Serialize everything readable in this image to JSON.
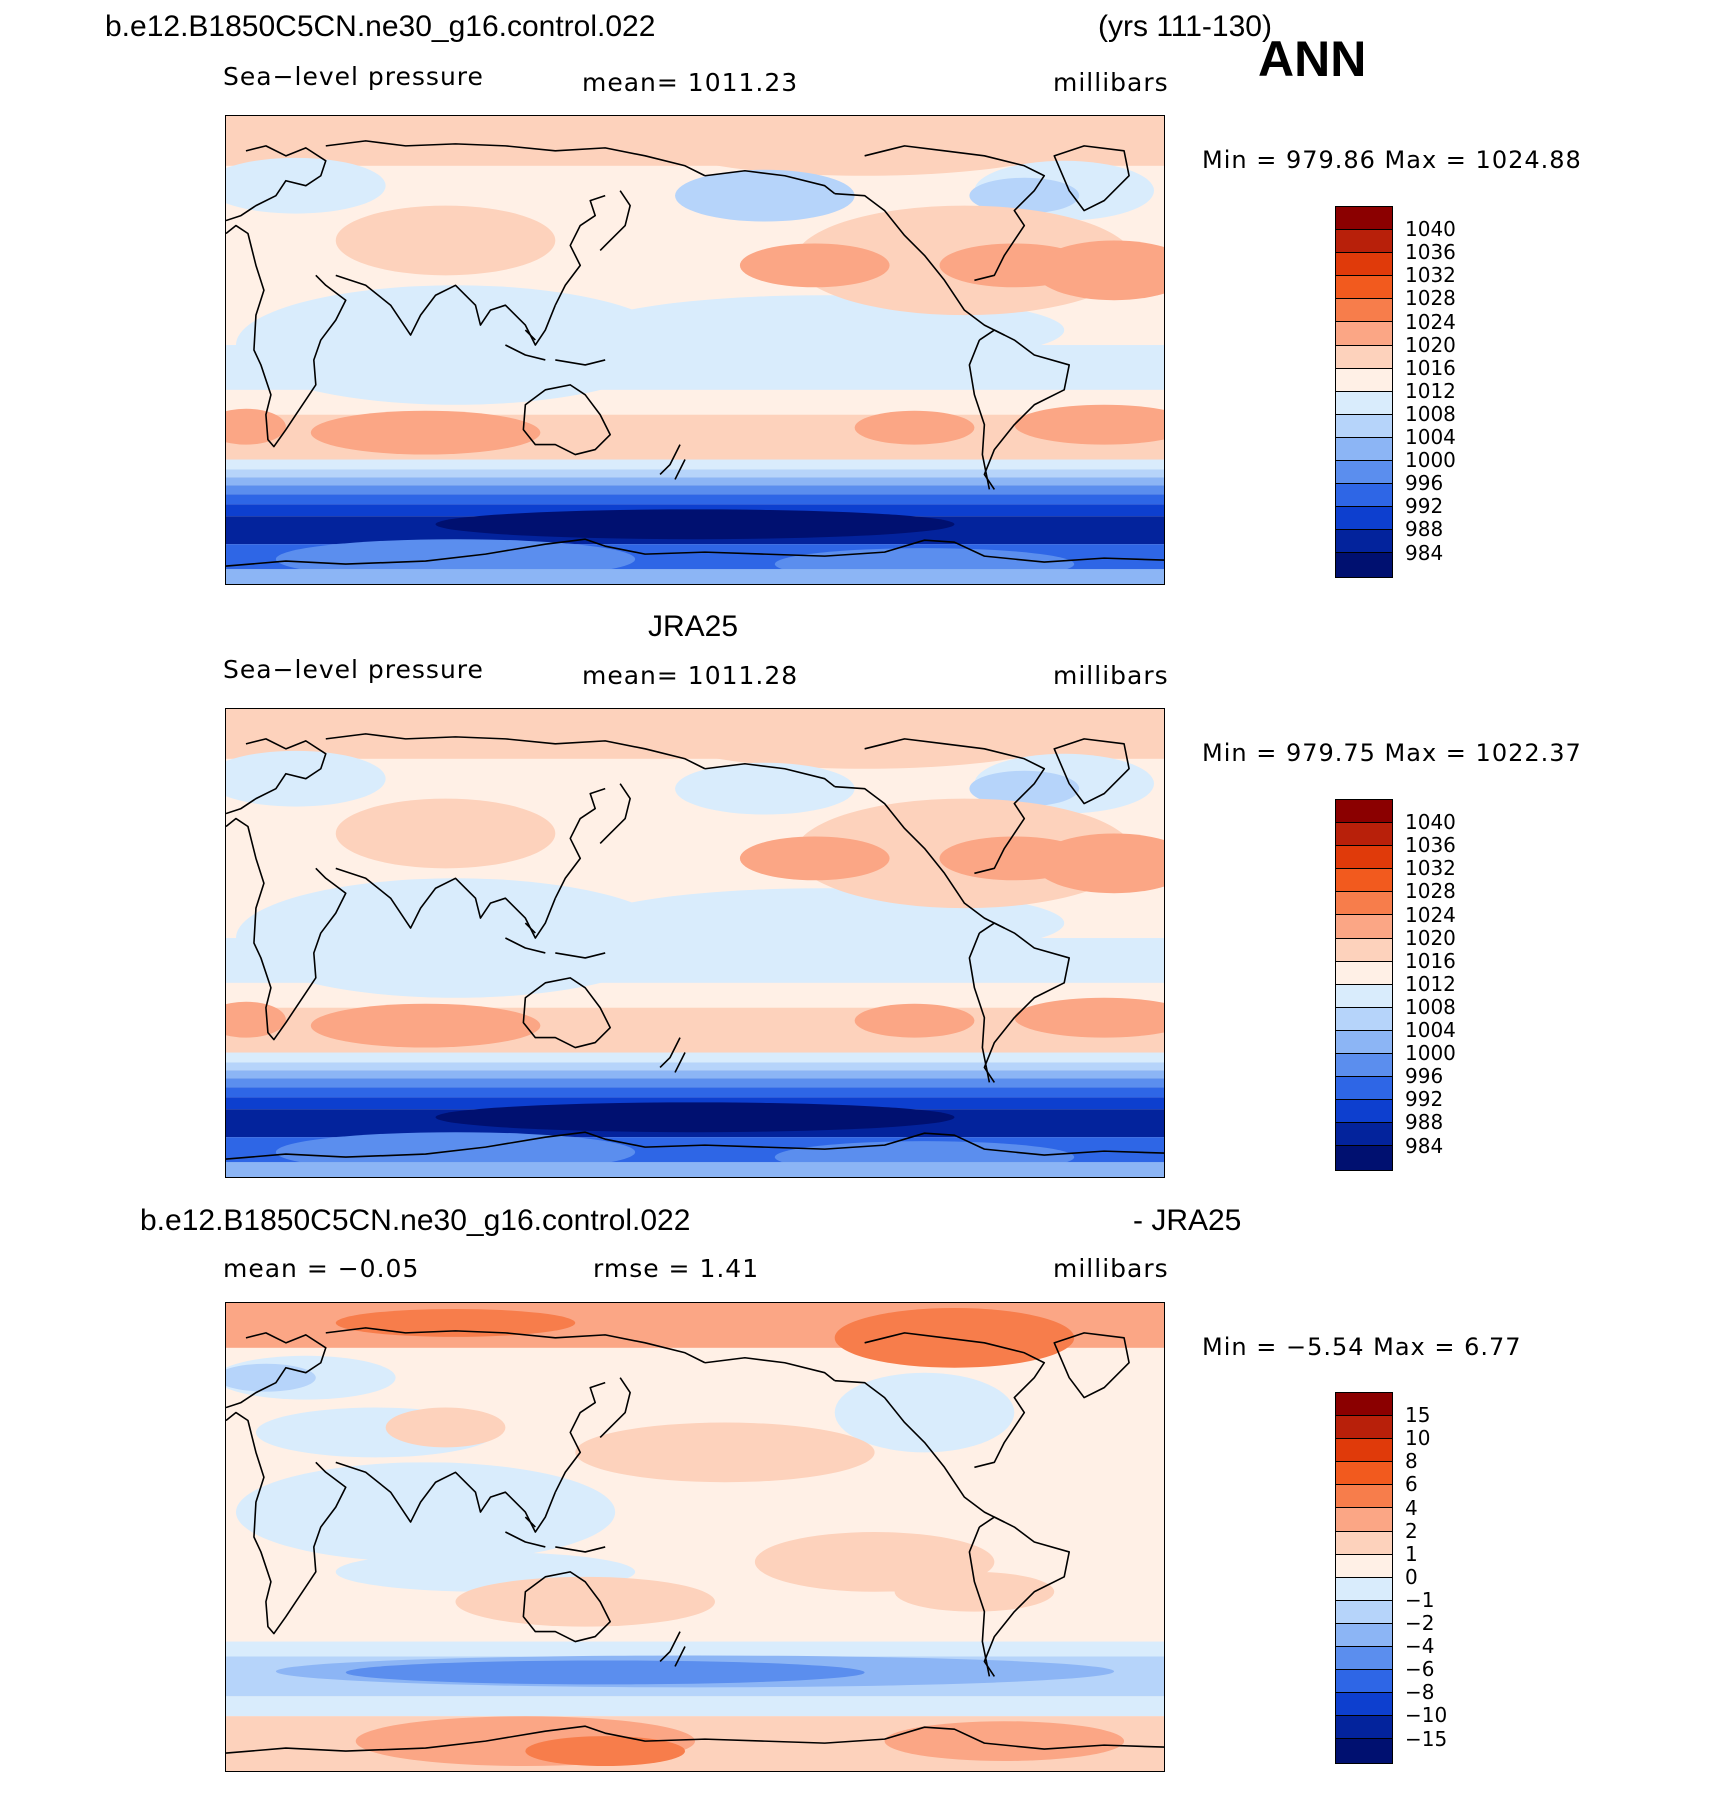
{
  "header": {
    "case_name": "b.e12.B1850C5CN.ne30_g16.control.022",
    "years": "(yrs 111-130)",
    "season": "ANN"
  },
  "panels": [
    {
      "title": "",
      "left_label": "Sea−level pressure",
      "center_label": "mean=  1011.23",
      "right_label": "millibars",
      "min_max": "Min  =  979.86  Max  =  1024.88",
      "colorbar": {
        "labels": [
          "1040",
          "1036",
          "1032",
          "1028",
          "1024",
          "1020",
          "1016",
          "1012",
          "1008",
          "1004",
          "1000",
          "996",
          "992",
          "988",
          "984"
        ],
        "colors": [
          "#8b0000",
          "#b8200a",
          "#e03a0a",
          "#f25a1e",
          "#f77d4b",
          "#fba685",
          "#fdd2bc",
          "#fff0e6",
          "#d9ecfc",
          "#b6d4fa",
          "#8cb5f5",
          "#5b8eee",
          "#2e66e6",
          "#0d3fcf",
          "#03239c",
          "#001070"
        ]
      },
      "map_type": "model_slp"
    },
    {
      "title": "JRA25",
      "left_label": "Sea−level pressure",
      "center_label": "mean=  1011.28",
      "right_label": "millibars",
      "min_max": "Min  =  979.75  Max  =  1022.37",
      "colorbar": {
        "labels": [
          "1040",
          "1036",
          "1032",
          "1028",
          "1024",
          "1020",
          "1016",
          "1012",
          "1008",
          "1004",
          "1000",
          "996",
          "992",
          "988",
          "984"
        ],
        "colors": [
          "#8b0000",
          "#b8200a",
          "#e03a0a",
          "#f25a1e",
          "#f77d4b",
          "#fba685",
          "#fdd2bc",
          "#fff0e6",
          "#d9ecfc",
          "#b6d4fa",
          "#8cb5f5",
          "#5b8eee",
          "#2e66e6",
          "#0d3fcf",
          "#03239c",
          "#001070"
        ]
      },
      "map_type": "obs_slp"
    },
    {
      "title_left": "b.e12.B1850C5CN.ne30_g16.control.022",
      "title_right": "- JRA25",
      "left_label": "mean  =    −0.05",
      "center_label": "rmse  =     1.41",
      "right_label": "millibars",
      "min_max": "Min  =    −5.54  Max  =     6.77",
      "colorbar": {
        "labels": [
          "15",
          "10",
          "8",
          "6",
          "4",
          "2",
          "1",
          "0",
          "−1",
          "−2",
          "−4",
          "−6",
          "−8",
          "−10",
          "−15"
        ],
        "colors": [
          "#8b0000",
          "#b8200a",
          "#e03a0a",
          "#f25a1e",
          "#f77d4b",
          "#fba685",
          "#fdd2bc",
          "#fff0e6",
          "#d9ecfc",
          "#b6d4fa",
          "#8cb5f5",
          "#5b8eee",
          "#2e66e6",
          "#0d3fcf",
          "#03239c",
          "#001070"
        ]
      },
      "map_type": "diff"
    }
  ]
}
